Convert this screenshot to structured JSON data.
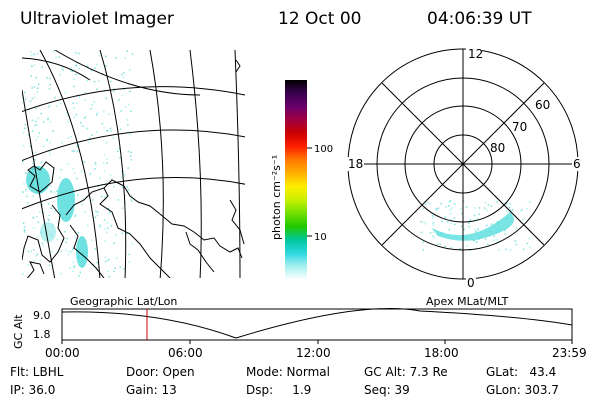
{
  "header": {
    "title": "Ultraviolet Imager",
    "date": "12 Oct 00",
    "time": "04:06:39 UT"
  },
  "colorbar": {
    "unit_label": "photon cm⁻²s⁻¹",
    "ticks": [
      "100",
      "10"
    ],
    "colors": [
      "#000000",
      "#3a0050",
      "#6a006a",
      "#a00040",
      "#cc0000",
      "#ff2000",
      "#ff7a00",
      "#ffb000",
      "#ffee00",
      "#c8f000",
      "#70e000",
      "#20c800",
      "#00c8a0",
      "#30d8e0",
      "#a8f0f0",
      "#ffffff"
    ]
  },
  "polar_plot": {
    "mlt_labels": {
      "top": "12",
      "left": "18",
      "right": "6",
      "bottom": "0"
    },
    "lat_labels": [
      "60",
      "70",
      "80"
    ]
  },
  "map_labels": {
    "left": "Geographic Lat/Lon",
    "right": "Apex MLat/MLT"
  },
  "altitude_panel": {
    "axis_label": "GC Alt",
    "y_ticks": [
      "9.0",
      "1.8"
    ],
    "x_ticks": [
      "00:00",
      "06:00",
      "12:00",
      "18:00",
      "23:59"
    ],
    "marker_color": "#cc0000"
  },
  "info": {
    "flt": "Flt: LBHL",
    "ip": "IP: 36.0",
    "door": "Door: Open",
    "gain": "Gain: 13",
    "mode": "Mode: Normal",
    "dsp": "Dsp:     1.9",
    "gcalt": "GC Alt: 7.3 Re",
    "seq": "Seq: 39",
    "glat": "GLat:   43.4",
    "glon": "GLon: 303.7"
  }
}
